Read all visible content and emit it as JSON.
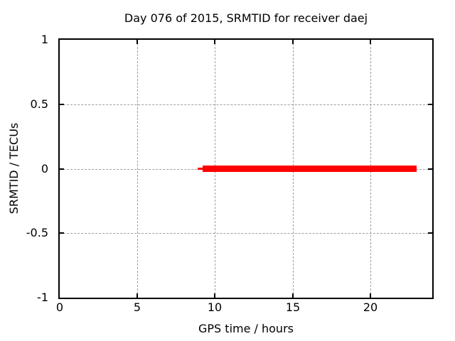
{
  "colors": {
    "background": "#ffffff",
    "text": "#000000",
    "border": "#000000",
    "grid": "#9e9e9e",
    "series": "#ff0000"
  },
  "chart_data": {
    "type": "line",
    "title": "Day 076 of 2015, SRMTID for receiver daej",
    "xlabel": "GPS time / hours",
    "ylabel": "SRMTID / TECUs",
    "xlim": [
      0,
      24
    ],
    "ylim": [
      -1,
      1
    ],
    "xticks": [
      0,
      5,
      10,
      15,
      20
    ],
    "yticks": [
      -1,
      -0.5,
      0,
      0.5,
      1
    ],
    "grid": true,
    "legend_position": "none",
    "series": [
      {
        "name": "SRMTID",
        "color": "#ff0000",
        "value": 0,
        "x_start_hours": 8.9,
        "x_end_hours": 23.0,
        "segments": [
          {
            "x_start": 8.9,
            "x_end": 9.2,
            "y": 0,
            "linewidth": 3
          },
          {
            "x_start": 9.2,
            "x_end": 23.0,
            "y": 0,
            "linewidth": 9
          }
        ]
      }
    ]
  }
}
